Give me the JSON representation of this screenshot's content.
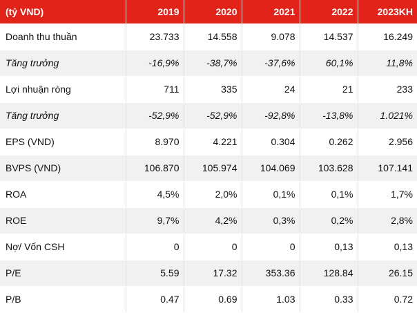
{
  "table": {
    "header": [
      "(tỷ VND)",
      "2019",
      "2020",
      "2021",
      "2022",
      "2023KH"
    ],
    "rows": [
      {
        "label": "Doanh thu thuần",
        "values": [
          "23.733",
          "14.558",
          "9.078",
          "14.537",
          "16.249"
        ]
      },
      {
        "label": "Tăng trưởng",
        "values": [
          "-16,9%",
          "-38,7%",
          "-37,6%",
          "60,1%",
          "11,8%"
        ]
      },
      {
        "label": "Lợi nhuận ròng",
        "values": [
          "711",
          "335",
          "24",
          "21",
          "233"
        ]
      },
      {
        "label": "Tăng trưởng",
        "values": [
          "-52,9%",
          "-52,9%",
          "-92,8%",
          "-13,8%",
          "1.021%"
        ]
      },
      {
        "label": "EPS (VND)",
        "values": [
          "8.970",
          "4.221",
          "0.304",
          "0.262",
          "2.956"
        ]
      },
      {
        "label": "BVPS (VND)",
        "values": [
          "106.870",
          "105.974",
          "104.069",
          "103.628",
          "107.141"
        ]
      },
      {
        "label": "ROA",
        "values": [
          "4,5%",
          "2,0%",
          "0,1%",
          "0,1%",
          "1,7%"
        ]
      },
      {
        "label": "ROE",
        "values": [
          "9,7%",
          "4,2%",
          "0,3%",
          "0,2%",
          "2,8%"
        ]
      },
      {
        "label": "Nợ/ Vốn CSH",
        "values": [
          "0",
          "0",
          "0",
          "0,13",
          "0,13"
        ]
      },
      {
        "label": "P/E",
        "values": [
          "5.59",
          "17.32",
          "353.36",
          "128.84",
          "26.15"
        ]
      },
      {
        "label": "P/B",
        "values": [
          "0.47",
          "0.69",
          "1.03",
          "0.33",
          "0.72"
        ]
      }
    ]
  },
  "colors": {
    "header_bg": "#e2231a",
    "header_text": "#ffffff",
    "alt_row_bg": "#f1f1f1"
  }
}
